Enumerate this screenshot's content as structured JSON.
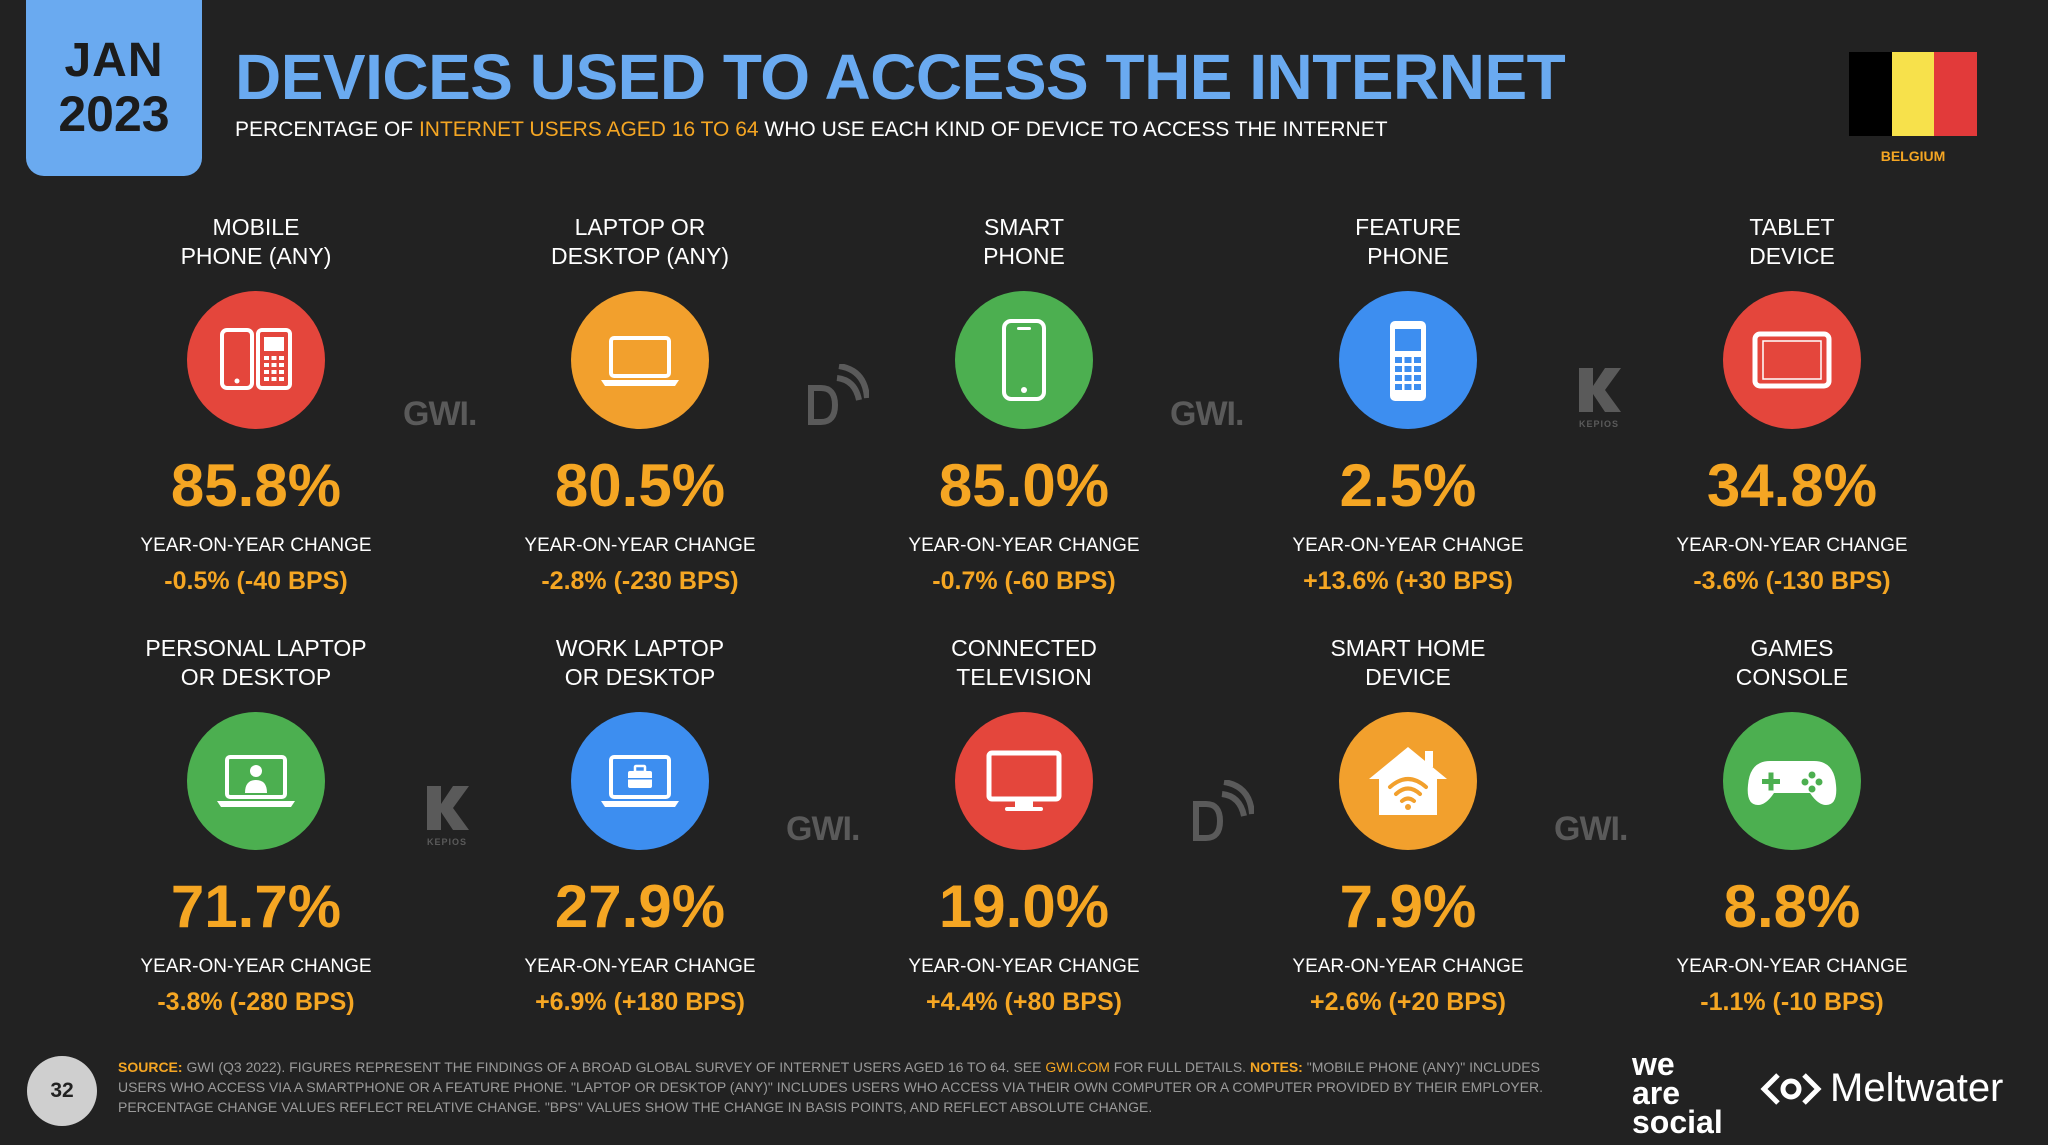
{
  "header": {
    "date_month": "JAN",
    "date_year": "2023",
    "title": "DEVICES USED TO ACCESS THE INTERNET",
    "subtitle_pre": "PERCENTAGE OF ",
    "subtitle_highlight": "INTERNET USERS AGED 16 TO 64",
    "subtitle_post": " WHO USE EACH KIND OF DEVICE TO ACCESS THE INTERNET",
    "country": "BELGIUM",
    "flag_colors": [
      "#000000",
      "#f7e14b",
      "#e23a3a"
    ]
  },
  "yoy_label": "YEAR-ON-YEAR CHANGE",
  "devices": [
    {
      "label_line1": "MOBILE",
      "label_line2": "PHONE (ANY)",
      "value": "85.8%",
      "change": "-0.5% (-40 BPS)",
      "color": "#e4463c",
      "icon": "mobile-phones-icon"
    },
    {
      "label_line1": "LAPTOP OR",
      "label_line2": "DESKTOP (ANY)",
      "value": "80.5%",
      "change": "-2.8% (-230 BPS)",
      "color": "#f2a02d",
      "icon": "laptop-icon"
    },
    {
      "label_line1": "SMART",
      "label_line2": "PHONE",
      "value": "85.0%",
      "change": "-0.7% (-60 BPS)",
      "color": "#4caf50",
      "icon": "smartphone-icon"
    },
    {
      "label_line1": "FEATURE",
      "label_line2": "PHONE",
      "value": "2.5%",
      "change": "+13.6% (+30 BPS)",
      "color": "#3d8ef0",
      "icon": "feature-phone-icon"
    },
    {
      "label_line1": "TABLET",
      "label_line2": "DEVICE",
      "value": "34.8%",
      "change": "-3.6% (-130 BPS)",
      "color": "#e4463c",
      "icon": "tablet-icon"
    },
    {
      "label_line1": "PERSONAL LAPTOP",
      "label_line2": "OR DESKTOP",
      "value": "71.7%",
      "change": "-3.8% (-280 BPS)",
      "color": "#4caf50",
      "icon": "personal-laptop-icon"
    },
    {
      "label_line1": "WORK LAPTOP",
      "label_line2": "OR DESKTOP",
      "value": "27.9%",
      "change": "+6.9% (+180 BPS)",
      "color": "#3d8ef0",
      "icon": "work-laptop-icon"
    },
    {
      "label_line1": "CONNECTED",
      "label_line2": "TELEVISION",
      "value": "19.0%",
      "change": "+4.4% (+80 BPS)",
      "color": "#e4463c",
      "icon": "television-icon"
    },
    {
      "label_line1": "SMART HOME",
      "label_line2": "DEVICE",
      "value": "7.9%",
      "change": "+2.6% (+20 BPS)",
      "color": "#f2a02d",
      "icon": "smart-home-icon"
    },
    {
      "label_line1": "GAMES",
      "label_line2": "CONSOLE",
      "value": "8.8%",
      "change": "-1.1% (-10 BPS)",
      "color": "#4caf50",
      "icon": "game-controller-icon"
    }
  ],
  "watermarks": {
    "gwi": "GWI.",
    "kepios": "KEPIOS"
  },
  "footer": {
    "page_number": "32",
    "source_label": "SOURCE:",
    "source_text_1": " GWI (Q3 2022). FIGURES REPRESENT THE FINDINGS OF A BROAD GLOBAL SURVEY OF INTERNET USERS AGED 16 TO 64. SEE ",
    "source_link": "GWI.COM",
    "source_text_2": " FOR FULL DETAILS. ",
    "notes_label": "NOTES:",
    "notes_text": " \"MOBILE PHONE (ANY)\" INCLUDES USERS WHO ACCESS VIA A SMARTPHONE OR A FEATURE PHONE. \"LAPTOP OR DESKTOP (ANY)\" INCLUDES USERS WHO ACCESS VIA THEIR OWN COMPUTER OR A COMPUTER PROVIDED BY THEIR EMPLOYER. PERCENTAGE CHANGE VALUES REFLECT RELATIVE CHANGE. \"BPS\" VALUES SHOW THE CHANGE IN BASIS POINTS, AND REFLECT ABSOLUTE CHANGE.",
    "brand_we": "we",
    "brand_are": "are",
    "brand_social": "social",
    "brand_meltwater": "Meltwater"
  }
}
